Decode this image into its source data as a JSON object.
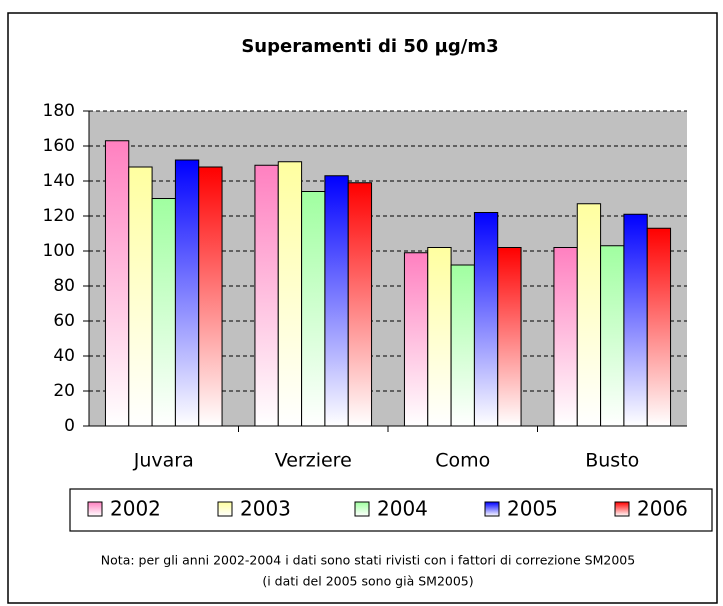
{
  "chart_data": {
    "type": "bar",
    "title": "Superamenti di 50 µg/m3",
    "categories": [
      "Juvara",
      "Verziere",
      "Como",
      "Busto"
    ],
    "series": [
      {
        "name": "2002",
        "color": "#ff80c0",
        "values": [
          163,
          149,
          99,
          102
        ]
      },
      {
        "name": "2003",
        "color": "#ffffa0",
        "values": [
          148,
          151,
          102,
          127
        ]
      },
      {
        "name": "2004",
        "color": "#a0ffa0",
        "values": [
          130,
          134,
          92,
          103
        ]
      },
      {
        "name": "2005",
        "color": "#0000ff",
        "values": [
          152,
          143,
          122,
          121
        ]
      },
      {
        "name": "2006",
        "color": "#ff0000",
        "values": [
          148,
          139,
          102,
          113
        ]
      }
    ],
    "ylim": [
      0,
      180
    ],
    "yticks": [
      0,
      20,
      40,
      60,
      80,
      100,
      120,
      140,
      160,
      180
    ],
    "grid": true,
    "legend": "bottom",
    "notes": [
      "Nota: per gli anni 2002-2004 i dati sono stati rivisti con i fattori di correzione SM2005",
      "(i dati del 2005 sono già SM2005)"
    ]
  }
}
